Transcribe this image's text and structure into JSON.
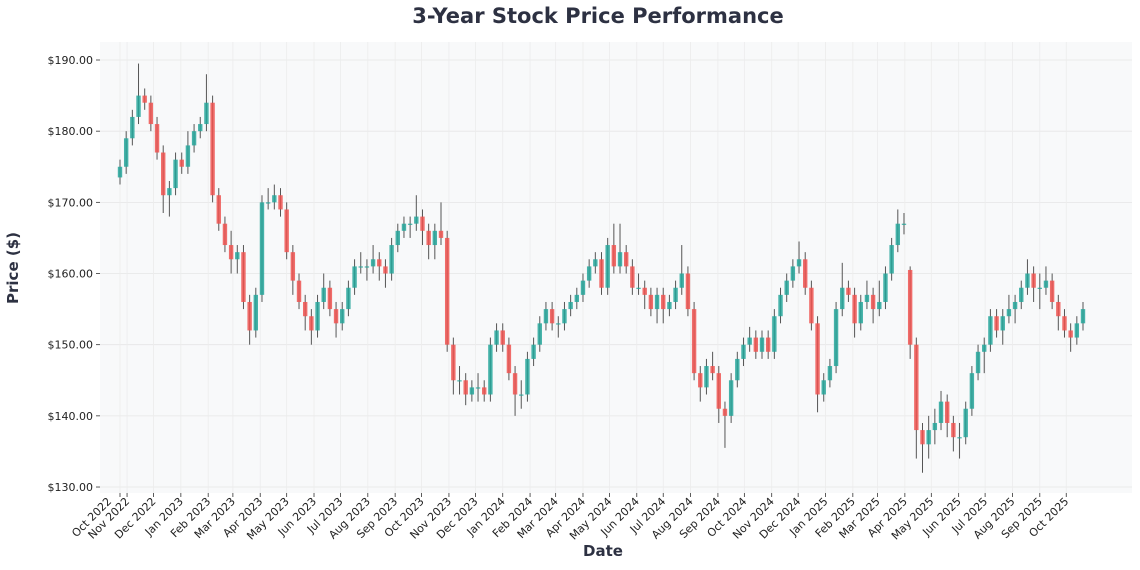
{
  "chart_data": {
    "type": "candlestick",
    "title": "3-Year Stock Price Performance",
    "xlabel": "Date",
    "ylabel": "Price ($)",
    "ylim": [
      129.5,
      192.5
    ],
    "yticks": [
      "$130.00",
      "$140.00",
      "$150.00",
      "$160.00",
      "$170.00",
      "$180.00",
      "$190.00"
    ],
    "ytick_values": [
      130,
      140,
      150,
      160,
      170,
      180,
      190
    ],
    "xticks": [
      "Oct 2022",
      "Nov 2022",
      "Dec 2022",
      "Jan 2023",
      "Feb 2023",
      "Mar 2023",
      "Apr 2023",
      "May 2023",
      "Jun 2023",
      "Jul 2023",
      "Aug 2023",
      "Sep 2023",
      "Oct 2023",
      "Nov 2023",
      "Dec 2023",
      "Jan 2024",
      "Feb 2024",
      "Mar 2024",
      "Apr 2024",
      "May 2024",
      "Jun 2024",
      "Jul 2024",
      "Aug 2024",
      "Sep 2024",
      "Oct 2024",
      "Nov 2024",
      "Dec 2024",
      "Jan 2025",
      "Feb 2025",
      "Mar 2025",
      "Apr 2025",
      "May 2025",
      "Jun 2025",
      "Jul 2025",
      "Aug 2025",
      "Sep 2025",
      "Oct 2025"
    ],
    "grid": true,
    "colors": {
      "up": "#26a69a",
      "down": "#ef5350",
      "wick": "#555555",
      "background": "#f8f9fa",
      "title": "#2d3142"
    },
    "columns": [
      "date",
      "open",
      "high",
      "low",
      "close"
    ],
    "ohlc": [
      [
        "2022-10-24",
        173.5,
        176,
        172.5,
        175
      ],
      [
        "2022-10-31",
        175,
        180,
        174,
        179
      ],
      [
        "2022-11-07",
        179,
        183,
        178,
        182
      ],
      [
        "2022-11-14",
        182,
        189.5,
        181,
        185
      ],
      [
        "2022-11-21",
        185,
        186,
        183,
        184
      ],
      [
        "2022-11-28",
        184,
        185,
        180,
        181
      ],
      [
        "2022-12-05",
        181,
        182,
        176,
        177
      ],
      [
        "2022-12-12",
        177,
        178,
        168.5,
        171
      ],
      [
        "2022-12-19",
        171,
        173,
        168,
        172
      ],
      [
        "2022-12-26",
        172,
        177,
        171,
        176
      ],
      [
        "2023-01-02",
        176,
        177,
        174,
        175
      ],
      [
        "2023-01-09",
        175,
        180,
        174,
        178
      ],
      [
        "2023-01-16",
        178,
        181,
        177,
        180
      ],
      [
        "2023-01-23",
        180,
        182,
        179,
        181
      ],
      [
        "2023-01-30",
        181,
        188,
        180,
        184
      ],
      [
        "2023-02-06",
        184,
        185,
        170,
        171
      ],
      [
        "2023-02-13",
        171,
        172,
        166,
        167
      ],
      [
        "2023-02-20",
        167,
        168,
        163,
        164
      ],
      [
        "2023-02-27",
        164,
        166,
        160,
        162
      ],
      [
        "2023-03-06",
        162,
        164,
        160,
        163
      ],
      [
        "2023-03-13",
        163,
        164,
        155,
        156
      ],
      [
        "2023-03-20",
        156,
        157,
        150,
        152
      ],
      [
        "2023-03-27",
        152,
        158,
        151,
        157
      ],
      [
        "2023-04-03",
        157,
        171,
        156,
        170
      ],
      [
        "2023-04-10",
        170,
        172,
        169,
        170
      ],
      [
        "2023-04-17",
        170,
        172.5,
        169,
        171
      ],
      [
        "2023-04-24",
        171,
        172,
        168,
        169
      ],
      [
        "2023-05-01",
        169,
        170,
        162,
        163
      ],
      [
        "2023-05-08",
        163,
        164,
        157,
        159
      ],
      [
        "2023-05-15",
        159,
        160,
        155,
        156
      ],
      [
        "2023-05-22",
        156,
        157,
        152,
        154
      ],
      [
        "2023-05-29",
        154,
        155,
        150,
        152
      ],
      [
        "2023-06-05",
        152,
        157,
        151,
        156
      ],
      [
        "2023-06-12",
        156,
        160,
        155,
        158
      ],
      [
        "2023-06-19",
        158,
        159,
        154,
        155
      ],
      [
        "2023-06-26",
        155,
        156,
        151,
        153
      ],
      [
        "2023-07-03",
        153,
        156,
        152,
        155
      ],
      [
        "2023-07-10",
        155,
        159,
        154,
        158
      ],
      [
        "2023-07-17",
        158,
        162,
        157,
        161
      ],
      [
        "2023-07-24",
        161,
        163,
        160,
        161
      ],
      [
        "2023-07-31",
        161,
        162,
        159,
        161
      ],
      [
        "2023-08-07",
        161,
        164,
        160,
        162
      ],
      [
        "2023-08-14",
        162,
        163,
        159,
        161
      ],
      [
        "2023-08-21",
        161,
        162,
        158,
        160
      ],
      [
        "2023-08-28",
        160,
        165,
        159,
        164
      ],
      [
        "2023-09-04",
        164,
        167,
        163,
        166
      ],
      [
        "2023-09-11",
        166,
        168,
        165,
        167
      ],
      [
        "2023-09-18",
        167,
        168,
        165,
        167
      ],
      [
        "2023-09-25",
        167,
        171,
        166,
        168
      ],
      [
        "2023-10-02",
        168,
        169,
        164,
        166
      ],
      [
        "2023-10-09",
        166,
        167,
        162,
        164
      ],
      [
        "2023-10-16",
        164,
        167,
        162,
        166
      ],
      [
        "2023-10-23",
        166,
        170,
        164,
        165
      ],
      [
        "2023-10-30",
        165,
        166,
        149,
        150
      ],
      [
        "2023-11-06",
        150,
        151,
        143,
        145
      ],
      [
        "2023-11-13",
        145,
        147,
        143,
        145
      ],
      [
        "2023-11-20",
        145,
        146,
        141.5,
        143
      ],
      [
        "2023-11-27",
        143,
        145,
        142,
        144
      ],
      [
        "2023-12-04",
        144,
        146,
        142,
        144
      ],
      [
        "2023-12-11",
        144,
        145,
        142,
        143
      ],
      [
        "2023-12-18",
        143,
        151,
        142,
        150
      ],
      [
        "2023-12-25",
        150,
        153,
        149,
        152
      ],
      [
        "2024-01-01",
        152,
        153,
        149,
        150
      ],
      [
        "2024-01-08",
        150,
        151,
        145,
        146
      ],
      [
        "2024-01-15",
        146,
        147,
        140,
        143
      ],
      [
        "2024-01-22",
        143,
        145,
        141,
        143
      ],
      [
        "2024-01-29",
        143,
        149,
        142,
        148
      ],
      [
        "2024-02-05",
        148,
        151,
        147,
        150
      ],
      [
        "2024-02-12",
        150,
        154,
        149,
        153
      ],
      [
        "2024-02-19",
        153,
        156,
        152,
        155
      ],
      [
        "2024-02-26",
        155,
        156,
        152,
        153
      ],
      [
        "2024-03-04",
        153,
        154,
        151,
        153
      ],
      [
        "2024-03-11",
        153,
        156,
        152,
        155
      ],
      [
        "2024-03-18",
        155,
        157,
        154,
        156
      ],
      [
        "2024-03-25",
        156,
        158,
        155,
        157
      ],
      [
        "2024-04-01",
        157,
        160,
        156,
        159
      ],
      [
        "2024-04-08",
        159,
        162,
        158,
        161
      ],
      [
        "2024-04-15",
        161,
        163,
        160,
        162
      ],
      [
        "2024-04-22",
        162,
        163,
        157,
        158
      ],
      [
        "2024-04-29",
        158,
        165,
        157,
        164
      ],
      [
        "2024-05-06",
        164,
        167,
        160,
        161
      ],
      [
        "2024-05-13",
        161,
        167,
        160,
        163
      ],
      [
        "2024-05-20",
        163,
        164,
        160,
        161
      ],
      [
        "2024-05-27",
        161,
        162,
        157,
        158
      ],
      [
        "2024-06-03",
        158,
        160,
        157,
        158
      ],
      [
        "2024-06-10",
        158,
        159,
        155,
        157
      ],
      [
        "2024-06-17",
        157,
        158,
        154,
        155
      ],
      [
        "2024-06-24",
        155,
        158,
        153,
        157
      ],
      [
        "2024-07-01",
        157,
        158,
        153,
        155
      ],
      [
        "2024-07-08",
        155,
        157,
        154,
        156
      ],
      [
        "2024-07-15",
        156,
        159,
        155,
        158
      ],
      [
        "2024-07-22",
        158,
        164,
        157,
        160
      ],
      [
        "2024-07-29",
        160,
        161,
        154,
        155
      ],
      [
        "2024-08-05",
        155,
        156,
        145,
        146
      ],
      [
        "2024-08-12",
        146,
        147,
        142,
        144
      ],
      [
        "2024-08-19",
        144,
        148,
        143,
        147
      ],
      [
        "2024-08-26",
        147,
        149,
        145,
        146
      ],
      [
        "2024-09-02",
        146,
        147,
        139,
        141
      ],
      [
        "2024-09-09",
        141,
        142,
        135.5,
        140
      ],
      [
        "2024-09-16",
        140,
        146,
        139,
        145
      ],
      [
        "2024-09-23",
        145,
        149,
        144,
        148
      ],
      [
        "2024-09-30",
        148,
        151,
        147,
        150
      ],
      [
        "2024-10-07",
        150,
        152.5,
        149,
        151
      ],
      [
        "2024-10-14",
        151,
        152,
        148,
        149
      ],
      [
        "2024-10-21",
        149,
        152,
        148,
        151
      ],
      [
        "2024-10-28",
        151,
        152,
        148,
        149
      ],
      [
        "2024-11-04",
        149,
        155,
        148,
        154
      ],
      [
        "2024-11-11",
        154,
        158,
        153,
        157
      ],
      [
        "2024-11-18",
        157,
        160,
        156,
        159
      ],
      [
        "2024-11-25",
        159,
        162,
        158,
        161
      ],
      [
        "2024-12-02",
        161,
        164.5,
        160,
        162
      ],
      [
        "2024-12-09",
        162,
        163,
        157,
        158
      ],
      [
        "2024-12-16",
        158,
        159,
        152,
        153
      ],
      [
        "2024-12-23",
        153,
        154,
        140.5,
        143
      ],
      [
        "2024-12-30",
        143,
        146,
        142,
        145
      ],
      [
        "2025-01-06",
        145,
        148,
        144,
        147
      ],
      [
        "2025-01-13",
        147,
        156,
        146,
        155
      ],
      [
        "2025-01-20",
        155,
        161.5,
        154,
        158
      ],
      [
        "2025-01-27",
        158,
        159,
        156,
        157
      ],
      [
        "2025-02-03",
        157,
        158,
        151,
        153
      ],
      [
        "2025-02-10",
        153,
        157,
        152,
        156
      ],
      [
        "2025-02-17",
        156,
        159,
        155,
        157
      ],
      [
        "2025-02-24",
        157,
        158,
        153,
        155
      ],
      [
        "2025-03-03",
        155,
        159,
        154,
        156
      ],
      [
        "2025-03-10",
        156,
        161,
        155,
        160
      ],
      [
        "2025-03-17",
        160,
        165,
        159,
        164
      ],
      [
        "2025-03-24",
        164,
        169,
        163,
        167
      ],
      [
        "2025-03-31",
        167,
        168.5,
        165.5,
        167
      ],
      [
        "2025-04-07",
        160.5,
        161,
        148,
        150
      ],
      [
        "2025-04-14",
        150,
        151,
        134,
        138
      ],
      [
        "2025-04-21",
        138,
        139,
        132,
        136
      ],
      [
        "2025-04-28",
        136,
        140,
        134,
        138
      ],
      [
        "2025-05-05",
        138,
        141,
        136,
        139
      ],
      [
        "2025-05-12",
        139,
        143.5,
        138,
        142
      ],
      [
        "2025-05-19",
        142,
        143,
        137,
        139
      ],
      [
        "2025-05-26",
        139,
        140,
        135,
        137
      ],
      [
        "2025-06-02",
        137,
        139,
        134,
        137
      ],
      [
        "2025-06-09",
        137,
        142,
        136,
        141
      ],
      [
        "2025-06-16",
        141,
        147,
        140,
        146
      ],
      [
        "2025-06-23",
        146,
        150,
        145,
        149
      ],
      [
        "2025-06-30",
        149,
        151,
        146,
        150
      ],
      [
        "2025-07-07",
        150,
        155,
        149,
        154
      ],
      [
        "2025-07-14",
        154,
        155,
        151,
        152
      ],
      [
        "2025-07-21",
        152,
        155,
        150,
        154
      ],
      [
        "2025-07-28",
        154,
        157,
        153,
        155
      ],
      [
        "2025-08-04",
        155,
        157,
        153,
        156
      ],
      [
        "2025-08-11",
        156,
        159,
        155,
        158
      ],
      [
        "2025-08-18",
        158,
        162,
        157,
        160
      ],
      [
        "2025-08-25",
        160,
        161,
        156,
        158
      ],
      [
        "2025-09-01",
        158,
        160,
        155,
        158
      ],
      [
        "2025-09-08",
        158,
        161,
        157,
        159
      ],
      [
        "2025-09-15",
        159,
        160,
        155,
        156
      ],
      [
        "2025-09-22",
        156,
        157,
        152,
        154
      ],
      [
        "2025-09-29",
        154,
        155,
        151,
        152
      ],
      [
        "2025-10-06",
        152,
        153,
        149,
        151
      ],
      [
        "2025-10-13",
        151,
        154,
        150,
        153
      ],
      [
        "2025-10-20",
        153,
        156,
        152,
        155
      ]
    ]
  }
}
